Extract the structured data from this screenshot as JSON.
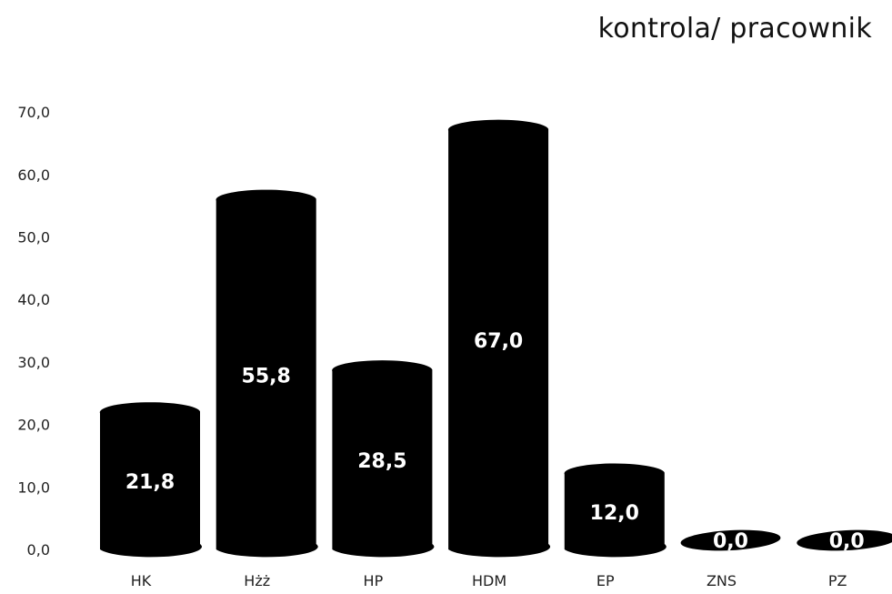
{
  "chart_data": {
    "type": "bar",
    "title": "kontrola/ pracownik",
    "categories": [
      "HK",
      "Hżż",
      "HP",
      "HDM",
      "EP",
      "ZNS",
      "PZ"
    ],
    "values": [
      21.8,
      55.8,
      28.5,
      67.0,
      12.0,
      0.0,
      0.0
    ],
    "value_labels": [
      "21,8",
      "55,8",
      "28,5",
      "67,0",
      "12,0",
      "0,0",
      "0,0"
    ],
    "y_ticks": [
      "0,0",
      "10,0",
      "20,0",
      "30,0",
      "40,0",
      "50,0",
      "60,0",
      "70,0"
    ],
    "ylim": [
      0,
      70
    ],
    "xlabel": "",
    "ylabel": "",
    "grid": false,
    "legend": "none",
    "bar_style": "cylinder",
    "colors": {
      "bar": "#000000",
      "value_label": "#ffffff",
      "text": "#222222"
    }
  }
}
